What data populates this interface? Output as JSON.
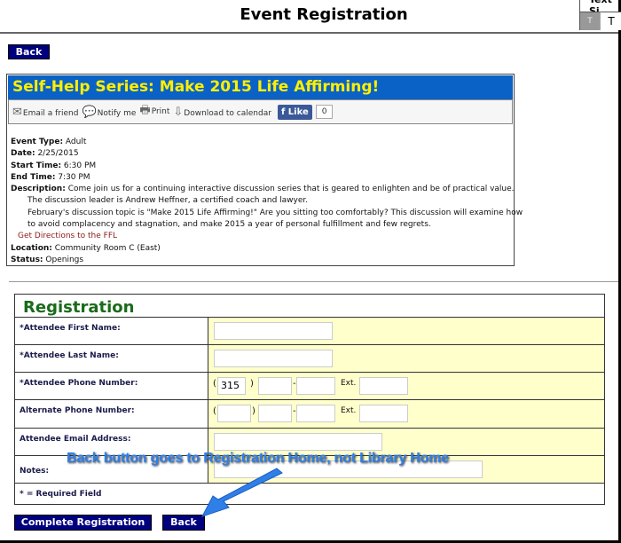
{
  "header": {
    "title": "Event Registration",
    "text_size_label": "Text Si",
    "text_size_small": "T",
    "text_size_large": "T",
    "back_label": "Back"
  },
  "event": {
    "title": "Self-Help Series: Make 2015 Life Affirming!",
    "toolbar": {
      "email": "Email a friend",
      "notify": "Notify me",
      "print": "Print",
      "download": "Download to calendar",
      "like": "Like",
      "like_count": "0"
    },
    "details": {
      "type_label": "Event Type:",
      "type": "Adult",
      "date_label": "Date:",
      "date": "2/25/2015",
      "start_label": "Start Time:",
      "start": "6:30 PM",
      "end_label": "End Time:",
      "end": "7:30 PM",
      "desc_label": "Description:",
      "desc1": "Come join us for a continuing interactive discussion series that is geared to enlighten and be of practical value.",
      "desc2": "The discussion leader is Andrew Heffner, a certified coach and lawyer.",
      "desc3": "February's discussion topic is \"Make 2015 Life Affirming!\" Are you sitting too comfortably? This discussion will examine how",
      "desc4": "to avoid complacency and stagnation, and make 2015 a year of personal fulfillment and few regrets.",
      "directions": "Get Directions to the FFL",
      "location_label": "Location:",
      "location": "Community Room C (East)",
      "status_label": "Status:",
      "status": "Openings"
    }
  },
  "registration": {
    "title": "Registration",
    "first_name": "*Attendee First Name:",
    "last_name": "*Attendee Last Name:",
    "phone": "*Attendee Phone Number:",
    "phone_area": "315",
    "alt_phone": "Alternate Phone Number:",
    "email": "Attendee Email Address:",
    "notes": "Notes:",
    "ext": "Ext.",
    "required": "* = Required Field",
    "complete_label": "Complete Registration",
    "back_label": "Back"
  },
  "annotation": {
    "text": "Back button goes to Registration Home, not Library Home",
    "color": "#2f7fe8"
  }
}
